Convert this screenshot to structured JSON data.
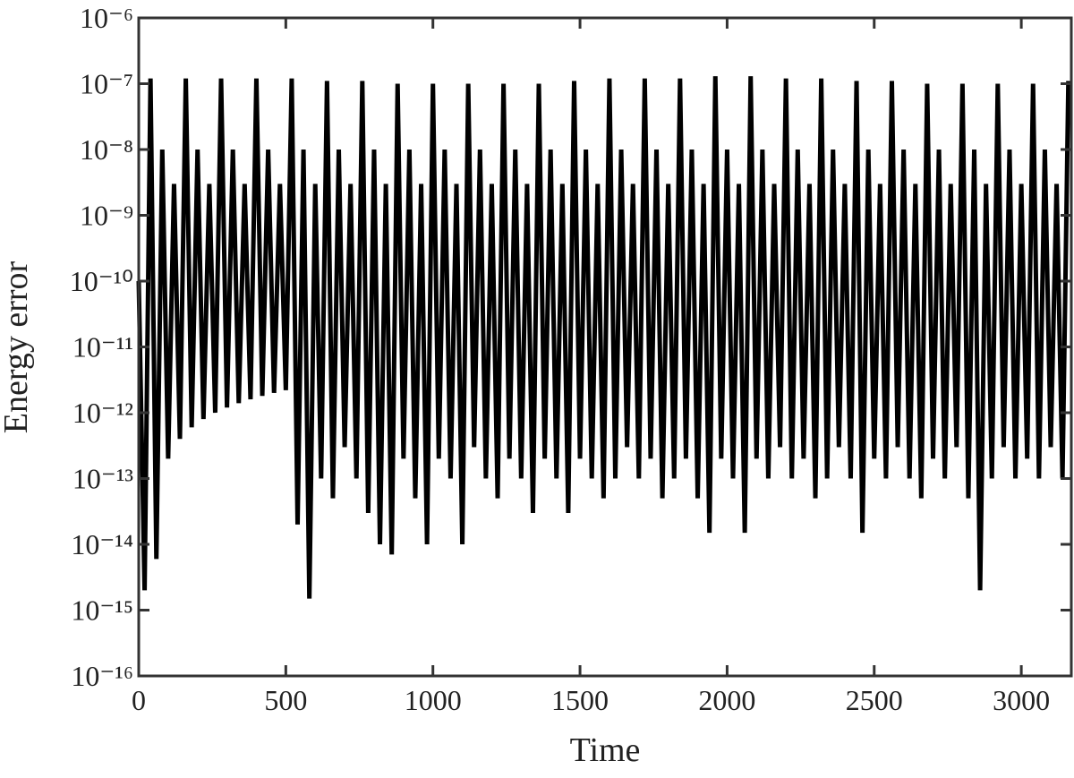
{
  "chart_data": {
    "type": "line",
    "xlabel": "Time",
    "ylabel": "Energy error",
    "yscale": "log",
    "color": "#000000",
    "xlim": [
      0,
      3170
    ],
    "xticks": [
      0,
      500,
      1000,
      1500,
      2000,
      2500,
      3000
    ],
    "ylim": [
      1e-16,
      1e-06
    ],
    "yticks": [
      {
        "value": 1e-16,
        "label": "10⁻¹⁶"
      },
      {
        "value": 1e-15,
        "label": "10⁻¹⁵"
      },
      {
        "value": 1e-14,
        "label": "10⁻¹⁴"
      },
      {
        "value": 1e-13,
        "label": "10⁻¹³"
      },
      {
        "value": 1e-12,
        "label": "10⁻¹²"
      },
      {
        "value": 1e-11,
        "label": "10⁻¹¹"
      },
      {
        "value": 1e-10,
        "label": "10⁻¹⁰"
      },
      {
        "value": 1e-09,
        "label": "10⁻⁹"
      },
      {
        "value": 1e-08,
        "label": "10⁻⁸"
      },
      {
        "value": 1e-07,
        "label": "10⁻⁷"
      },
      {
        "value": 1e-06,
        "label": "10⁻⁶"
      }
    ],
    "x": [
      0,
      20,
      40,
      60,
      80,
      100,
      120,
      140,
      160,
      180,
      200,
      220,
      240,
      260,
      280,
      300,
      320,
      340,
      360,
      380,
      400,
      420,
      440,
      460,
      480,
      500,
      520,
      540,
      560,
      580,
      600,
      620,
      640,
      660,
      680,
      700,
      720,
      740,
      760,
      780,
      800,
      820,
      840,
      860,
      880,
      900,
      920,
      940,
      960,
      980,
      1000,
      1020,
      1040,
      1060,
      1080,
      1100,
      1120,
      1140,
      1160,
      1180,
      1200,
      1220,
      1240,
      1260,
      1280,
      1300,
      1320,
      1340,
      1360,
      1380,
      1400,
      1420,
      1440,
      1460,
      1480,
      1500,
      1520,
      1540,
      1560,
      1580,
      1600,
      1620,
      1640,
      1660,
      1680,
      1700,
      1720,
      1740,
      1760,
      1780,
      1800,
      1820,
      1840,
      1860,
      1880,
      1900,
      1920,
      1940,
      1960,
      1980,
      2000,
      2020,
      2040,
      2060,
      2080,
      2100,
      2120,
      2140,
      2160,
      2180,
      2200,
      2220,
      2240,
      2260,
      2280,
      2300,
      2320,
      2340,
      2360,
      2380,
      2400,
      2420,
      2440,
      2460,
      2480,
      2500,
      2520,
      2540,
      2560,
      2580,
      2600,
      2620,
      2640,
      2660,
      2680,
      2700,
      2720,
      2740,
      2760,
      2780,
      2800,
      2820,
      2840,
      2860,
      2880,
      2900,
      2920,
      2940,
      2960,
      2980,
      3000,
      3020,
      3040,
      3060,
      3080,
      3100,
      3120,
      3140,
      3160
    ],
    "values": [
      1e-10,
      2e-15,
      1.2e-07,
      6e-15,
      1e-08,
      2e-13,
      3e-09,
      4e-13,
      1.2e-07,
      6e-13,
      1e-08,
      8e-13,
      3e-09,
      1e-12,
      1.2e-07,
      1.2e-12,
      1e-08,
      1.4e-12,
      3e-09,
      1.6e-12,
      1.2e-07,
      1.8e-12,
      1e-08,
      2e-12,
      3e-09,
      2.2e-12,
      1.2e-07,
      2e-14,
      1e-08,
      1.5e-15,
      3e-09,
      1e-13,
      1.1e-07,
      5e-14,
      1e-08,
      3e-13,
      3e-09,
      1e-13,
      1.1e-07,
      3e-14,
      1e-08,
      1e-14,
      3e-09,
      7e-15,
      1e-07,
      2e-13,
      1e-08,
      5e-14,
      3e-09,
      1e-14,
      1e-07,
      2e-13,
      1e-08,
      1e-13,
      3e-09,
      1e-14,
      1e-07,
      3e-13,
      1e-08,
      1e-13,
      3e-09,
      5e-14,
      1e-07,
      2e-13,
      1e-08,
      1e-13,
      3e-09,
      3e-14,
      1e-07,
      2e-13,
      1e-08,
      1e-13,
      3e-09,
      3e-14,
      1.1e-07,
      2e-13,
      1e-08,
      1e-13,
      3e-09,
      5e-14,
      1.2e-07,
      1e-13,
      1e-08,
      3e-13,
      3e-09,
      1e-13,
      1.2e-07,
      2e-13,
      1e-08,
      5e-14,
      3e-09,
      1e-13,
      1.2e-07,
      2e-13,
      1e-08,
      5e-14,
      3e-09,
      1.5e-14,
      1.3e-07,
      2e-13,
      1e-08,
      1e-13,
      3e-09,
      1.5e-14,
      1.3e-07,
      2e-13,
      1e-08,
      1e-13,
      3e-09,
      3e-13,
      1.2e-07,
      1e-13,
      1e-08,
      2e-13,
      3e-09,
      5e-14,
      1.2e-07,
      1e-13,
      1e-08,
      3e-13,
      3e-09,
      1e-13,
      1.1e-07,
      1.5e-14,
      1e-08,
      2e-13,
      3e-09,
      1e-13,
      1.1e-07,
      3e-13,
      1e-08,
      1e-13,
      3e-09,
      5e-14,
      1e-07,
      2e-13,
      1e-08,
      1e-13,
      3e-09,
      3e-13,
      1e-07,
      5e-14,
      1e-08,
      2e-15,
      3e-09,
      1e-13,
      1e-07,
      3e-13,
      1e-08,
      1e-13,
      3e-09,
      2e-13,
      1e-07,
      1e-13,
      1e-08,
      3e-13,
      3e-09,
      1e-13,
      1.1e-07
    ]
  }
}
